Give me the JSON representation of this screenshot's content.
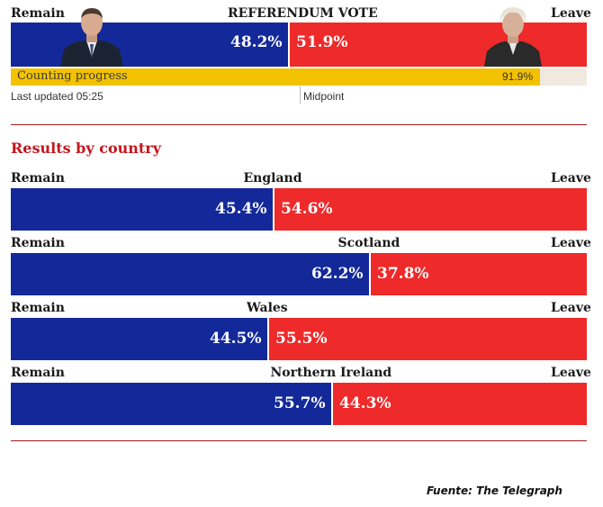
{
  "colors": {
    "remain": "#13299a",
    "leave": "#ee2a2a",
    "progress_fill": "#f2c200",
    "progress_track": "#efe9e0",
    "heading_red": "#c4161c",
    "rule": "#9b1b1f"
  },
  "header": {
    "remain_label": "Remain",
    "title": "REFERENDUM VOTE",
    "leave_label": "Leave",
    "remain_portrait": "remain-leader-photo",
    "leave_portrait": "leave-leader-photo"
  },
  "progress": {
    "label": "Counting progress",
    "value_label": "91.9%",
    "value": 91.9
  },
  "status": {
    "last_updated": "Last updated 05:25",
    "midpoint": "Midpoint"
  },
  "section": {
    "title": "Results by country"
  },
  "chart_data": [
    {
      "type": "bar",
      "title": "REFERENDUM VOTE",
      "orientation": "horizontal-stacked-100",
      "series": [
        {
          "name": "Remain",
          "values": [
            48.2
          ],
          "labels": [
            "48.2%"
          ]
        },
        {
          "name": "Leave",
          "values": [
            51.9
          ],
          "labels": [
            "51.9%"
          ]
        }
      ]
    },
    {
      "type": "bar",
      "title": "Results by country",
      "orientation": "horizontal-stacked-100",
      "remain_label": "Remain",
      "leave_label": "Leave",
      "categories": [
        "England",
        "Scotland",
        "Wales",
        "Northern Ireland"
      ],
      "series": [
        {
          "name": "Remain",
          "values": [
            45.4,
            62.2,
            44.5,
            55.7
          ],
          "labels": [
            "45.4%",
            "62.2%",
            "44.5%",
            "55.7%"
          ]
        },
        {
          "name": "Leave",
          "values": [
            54.6,
            37.8,
            55.5,
            44.3
          ],
          "labels": [
            "54.6%",
            "37.8%",
            "55.5%",
            "44.3%"
          ]
        }
      ]
    }
  ],
  "source": {
    "label": "Fuente: The Telegraph"
  }
}
